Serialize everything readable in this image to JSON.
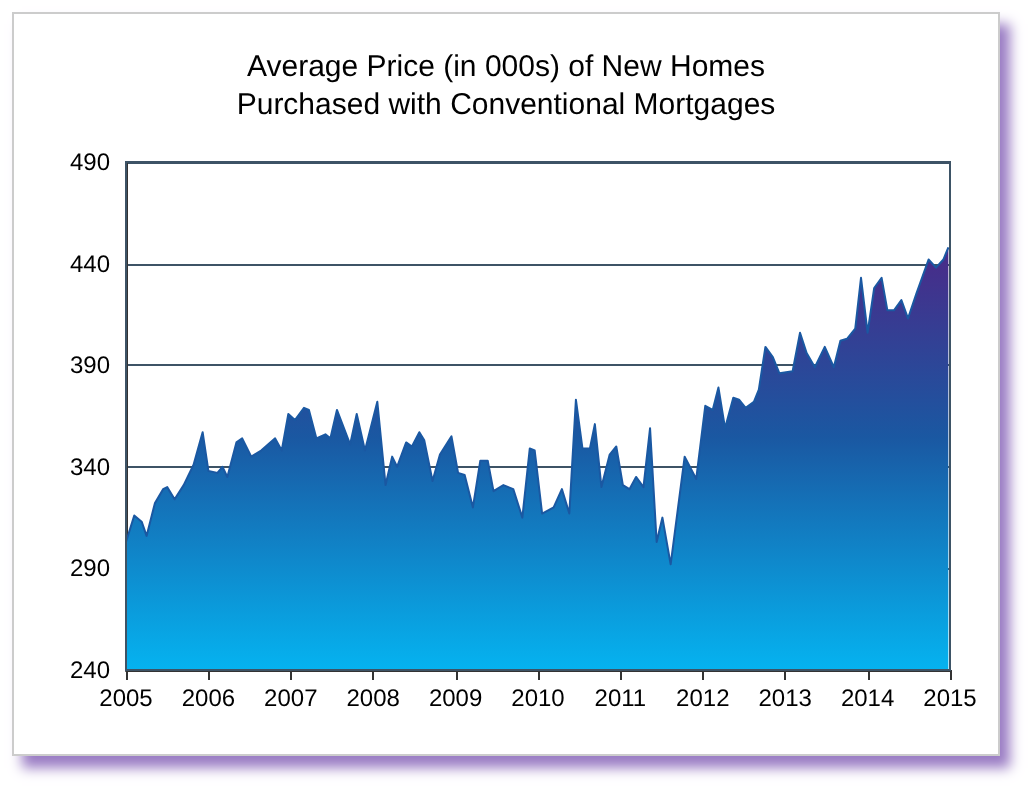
{
  "chart_data": {
    "type": "area",
    "title": "Average Price (in 000s) of New Homes\nPurchased with Conventional Mortgages",
    "xlim": [
      2005,
      2015
    ],
    "xticks": [
      2005,
      2006,
      2007,
      2008,
      2009,
      2010,
      2011,
      2012,
      2013,
      2014,
      2015
    ],
    "ylim": [
      240,
      490
    ],
    "yticks": [
      240,
      290,
      340,
      390,
      440,
      490
    ],
    "grid": "y",
    "marker": "none",
    "series": [
      {
        "color": "#1a58a2",
        "x": [
          2005.0,
          2005.1,
          2005.19,
          2005.25,
          2005.35,
          2005.45,
          2005.5,
          2005.59,
          2005.7,
          2005.82,
          2005.93,
          2006.0,
          2006.11,
          2006.17,
          2006.23,
          2006.34,
          2006.41,
          2006.52,
          2006.64,
          2006.81,
          2006.89,
          2006.97,
          2007.05,
          2007.16,
          2007.22,
          2007.31,
          2007.42,
          2007.48,
          2007.56,
          2007.72,
          2007.8,
          2007.9,
          2008.05,
          2008.15,
          2008.23,
          2008.29,
          2008.4,
          2008.47,
          2008.56,
          2008.62,
          2008.72,
          2008.81,
          2008.95,
          2009.03,
          2009.11,
          2009.21,
          2009.3,
          2009.39,
          2009.46,
          2009.58,
          2009.7,
          2009.81,
          2009.9,
          2009.96,
          2010.05,
          2010.19,
          2010.29,
          2010.38,
          2010.46,
          2010.54,
          2010.63,
          2010.69,
          2010.77,
          2010.87,
          2010.95,
          2011.03,
          2011.11,
          2011.19,
          2011.28,
          2011.36,
          2011.44,
          2011.51,
          2011.61,
          2011.78,
          2011.92,
          2012.03,
          2012.12,
          2012.19,
          2012.27,
          2012.37,
          2012.44,
          2012.52,
          2012.62,
          2012.68,
          2012.76,
          2012.85,
          2012.93,
          2013.09,
          2013.18,
          2013.26,
          2013.36,
          2013.48,
          2013.59,
          2013.67,
          2013.75,
          2013.85,
          2013.92,
          2014.0,
          2014.08,
          2014.17,
          2014.24,
          2014.32,
          2014.41,
          2014.49,
          2014.59,
          2014.74,
          2014.83,
          2014.92,
          2014.98
        ],
        "values": [
          303,
          316,
          313,
          306,
          322,
          329,
          330,
          324,
          331,
          341,
          357,
          338,
          337,
          340,
          335,
          352,
          354,
          345,
          348,
          354,
          348,
          366,
          363,
          369,
          368,
          354,
          356,
          354,
          368,
          351,
          366,
          348,
          372,
          331,
          345,
          340,
          352,
          350,
          357,
          353,
          333,
          346,
          355,
          337,
          336,
          320,
          343,
          343,
          328,
          331,
          329,
          315,
          349,
          348,
          317,
          320,
          329,
          317,
          373,
          349,
          349,
          361,
          330,
          346,
          350,
          331,
          329,
          335,
          330,
          359,
          303,
          315,
          292,
          345,
          334,
          370,
          368,
          379,
          359,
          374,
          373,
          369,
          372,
          378,
          399,
          394,
          386,
          387,
          406,
          396,
          389,
          399,
          389,
          402,
          403,
          408,
          433,
          406,
          428,
          433,
          417,
          417,
          422,
          413,
          425,
          442,
          438,
          442,
          448
        ]
      }
    ]
  }
}
